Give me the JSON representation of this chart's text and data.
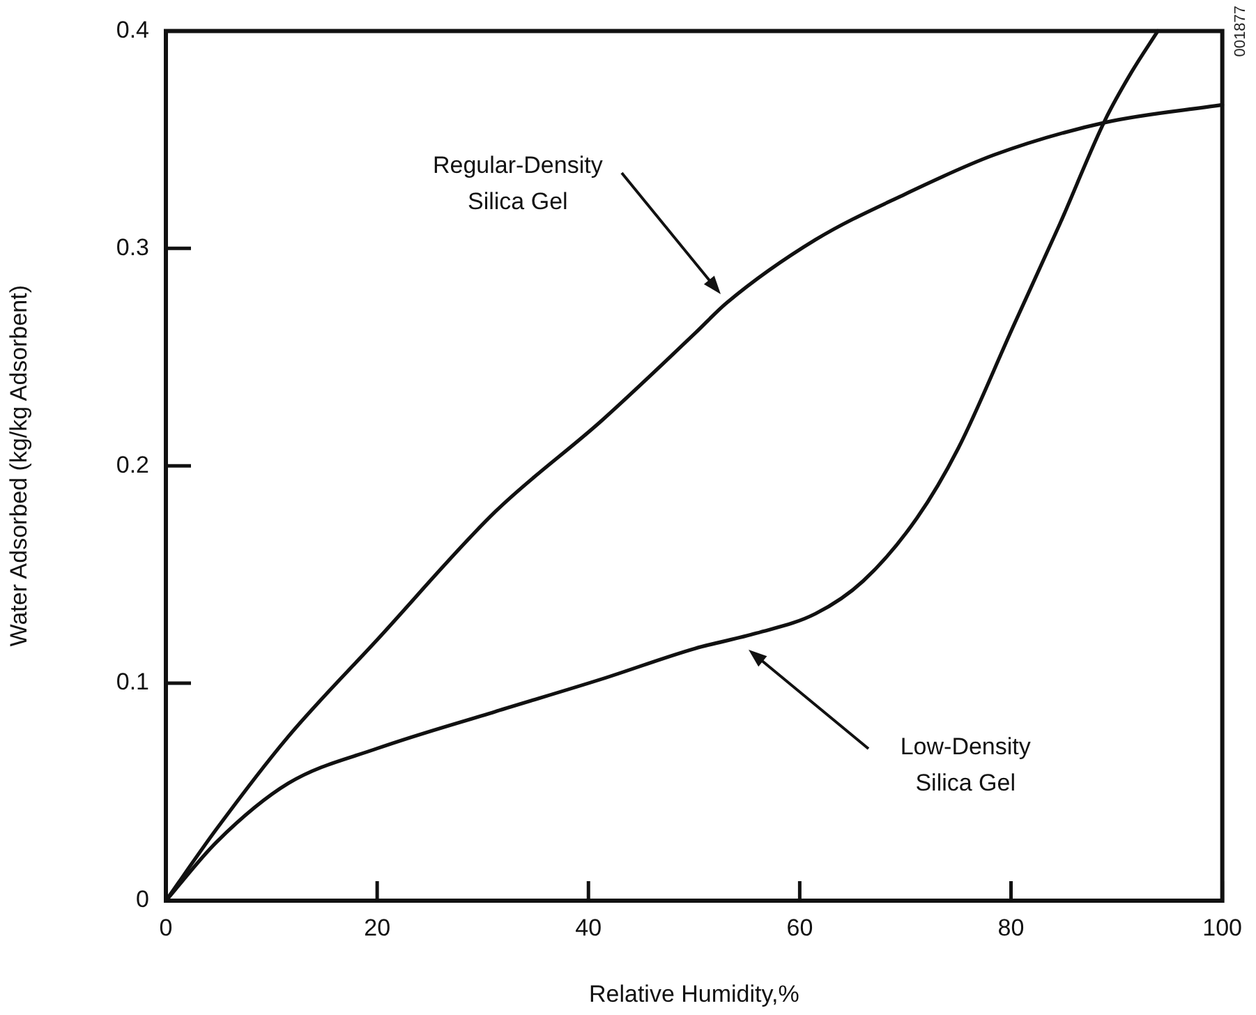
{
  "chart_data": {
    "type": "line",
    "xlabel": "Relative Humidity,%",
    "ylabel": "Water Adsorbed (kg/kg Adsorbent)",
    "xlim": [
      0,
      100
    ],
    "xticks": [
      0,
      20,
      40,
      60,
      80,
      100
    ],
    "ylim": [
      0,
      0.4
    ],
    "yticks": [
      0,
      0.1,
      0.2,
      0.3,
      0.4
    ],
    "grid": false,
    "legend": false,
    "marker": "none",
    "line_style": "solid",
    "series": [
      {
        "color": "#111111",
        "x": [
          0,
          4.8,
          11.5,
          20,
          31.2,
          41.3,
          50.1,
          53.1,
          61.5,
          70,
          78.4,
          89,
          100
        ],
        "values": [
          0,
          0.033,
          0.075,
          0.12,
          0.179,
          0.221,
          0.261,
          0.275,
          0.304,
          0.325,
          0.343,
          0.358,
          0.366
        ]
      },
      {
        "color": "#111111",
        "x": [
          0,
          4.8,
          11.6,
          20,
          31.2,
          41.3,
          50.1,
          55.9,
          61.5,
          66,
          71.1,
          75,
          80.2,
          84.6,
          88.9,
          91.4,
          93.9
        ],
        "values": [
          0,
          0.027,
          0.054,
          0.07,
          0.087,
          0.102,
          0.116,
          0.123,
          0.132,
          0.147,
          0.176,
          0.208,
          0.264,
          0.311,
          0.359,
          0.381,
          0.4
        ]
      }
    ],
    "annotations": [
      "Regular-Density Silica Gel",
      "Low-Density Silica Gel",
      "001877"
    ]
  }
}
